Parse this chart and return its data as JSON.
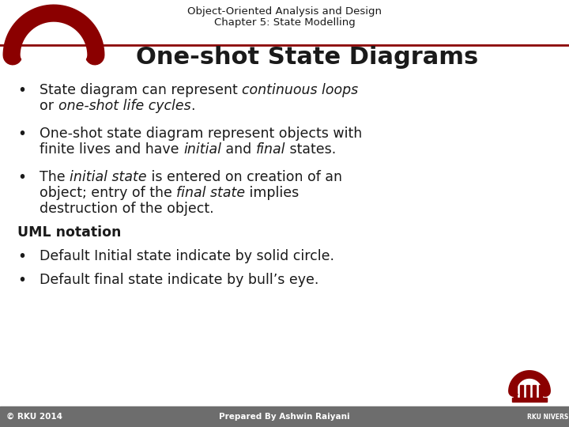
{
  "title_line1": "Object-Oriented Analysis and Design",
  "title_line2": "Chapter 5: State Modelling",
  "slide_title": "One-shot State Diagrams",
  "uml_header": "UML notation",
  "uml_b1": "Default Initial state indicate by solid circle.",
  "uml_b2": "Default final state indicate by bull’s eye.",
  "footer_left": "© RKU 2014",
  "footer_center": "Prepared By Ashwin Raiyani",
  "bg_color": "#ffffff",
  "footer_bg": "#6d6d6d",
  "header_line_color": "#8B0000",
  "text_color": "#1a1a1a",
  "footer_text_color": "#ffffff",
  "arc_color": "#8B0000",
  "title_fontsize": 9.5,
  "slide_title_fontsize": 22,
  "body_fontsize": 12.5,
  "footer_fontsize": 7.5
}
